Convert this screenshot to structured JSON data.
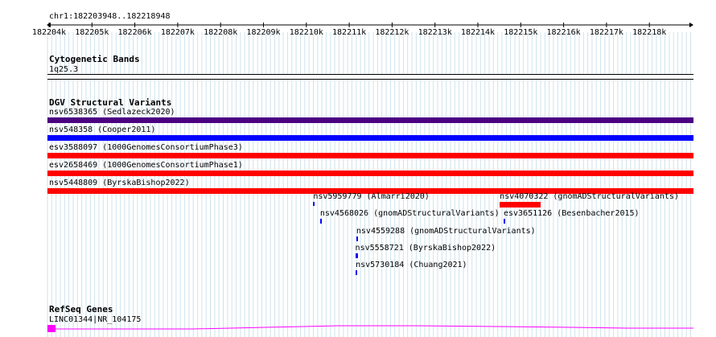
{
  "ruler": {
    "location": "chr1:182203948..182218948",
    "ticks": [
      "182204k",
      "182205k",
      "182206k",
      "182207k",
      "182208k",
      "182209k",
      "182210k",
      "182211k",
      "182212k",
      "182213k",
      "182214k",
      "182215k",
      "182216k",
      "182217k",
      "182218k"
    ]
  },
  "tracks": {
    "cytoband": {
      "title": "Cytogenetic Bands",
      "label": "1q25.3"
    },
    "dgv": {
      "title": "DGV Structural Variants",
      "features": [
        {
          "id": "nsv6538365",
          "label": "nsv6538365 (Sedlazeck2020)",
          "color": "#4b0082",
          "start": 182203948,
          "end": 182218948
        },
        {
          "id": "nsv548358",
          "label": "nsv548358 (Cooper2011)",
          "color": "#0000ff",
          "start": 182203948,
          "end": 182218948
        },
        {
          "id": "esv3588097",
          "label": "esv3588097 (1000GenomesConsortiumPhase3)",
          "color": "#ff0000",
          "start": 182203948,
          "end": 182218948
        },
        {
          "id": "esv2658469",
          "label": "esv2658469 (1000GenomesConsortiumPhase1)",
          "color": "#ff0000",
          "start": 182203948,
          "end": 182218948
        },
        {
          "id": "nsv5448809",
          "label": "nsv5448809 (ByrskaBishop2022)",
          "color": "#ff0000",
          "start": 182203948,
          "end": 182218948
        },
        {
          "id": "nsv5959779",
          "label": "nsv5959779 (Almarri2020)",
          "color": "#0000ff",
          "start": 182210160,
          "end": 182210175
        },
        {
          "id": "nsv4070322",
          "label": "nsv4070322 (gnomADStructuralVariants)",
          "color": "#ff0000",
          "start": 182214510,
          "end": 182215460
        },
        {
          "id": "nsv4568026",
          "label": "nsv4568026 (gnomADStructuralVariants)",
          "color": "#0000ff",
          "start": 182210320,
          "end": 182210340
        },
        {
          "id": "esv3651126",
          "label": "esv3651126 (Besenbacher2015)",
          "color": "#0000ff",
          "start": 182214600,
          "end": 182214615
        },
        {
          "id": "nsv4559288",
          "label": "nsv4559288 (gnomADStructuralVariants)",
          "color": "#0000ff",
          "start": 182211165,
          "end": 182211180
        },
        {
          "id": "nsv5558721",
          "label": "nsv5558721 (ByrskaBishop2022)",
          "color": "#0000ff",
          "start": 182211140,
          "end": 182211210
        },
        {
          "id": "nsv5730184",
          "label": "nsv5730184 (Chuang2021)",
          "color": "#0000ff",
          "start": 182211150,
          "end": 182211165
        }
      ]
    },
    "refseq": {
      "title": "RefSeq Genes",
      "label": "LINC01344|NR_104175",
      "color": "#ff00ff"
    }
  }
}
